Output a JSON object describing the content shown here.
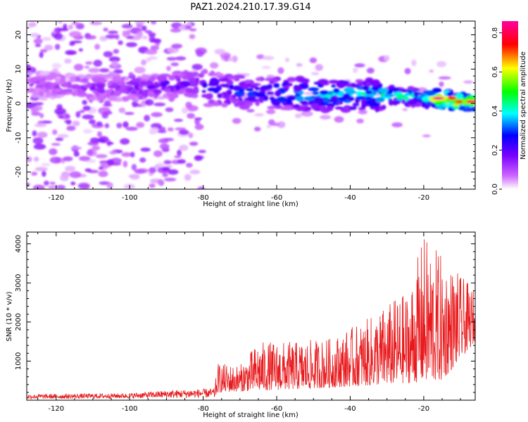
{
  "title": "PAZ1.2024.210.17.39.G14",
  "chart_data": [
    {
      "type": "heatmap",
      "xlabel": "Height of straight line (km)",
      "ylabel": "Frequency (Hz)",
      "xlim": [
        -128,
        -6
      ],
      "ylim": [
        -25,
        24
      ],
      "xticks": [
        -120,
        -100,
        -80,
        -60,
        -40,
        -20
      ],
      "yticks": [
        -20,
        -10,
        0,
        10,
        20
      ],
      "colorbar": {
        "label": "Normalized spectral amplitude",
        "range": [
          0.0,
          0.86
        ],
        "ticks": [
          0.0,
          0.2,
          0.4,
          0.6,
          0.8
        ],
        "colormap": [
          "#ffffff",
          "#cc66ff",
          "#7a00ff",
          "#0000ff",
          "#00ffff",
          "#00ff00",
          "#ffff00",
          "#ff0000",
          "#ff00a0"
        ]
      },
      "ridge": [
        {
          "x": -125,
          "y": 5.5,
          "v": 0.12
        },
        {
          "x": -110,
          "y": 4.5,
          "v": 0.15
        },
        {
          "x": -95,
          "y": 4.5,
          "v": 0.2
        },
        {
          "x": -85,
          "y": 6.0,
          "v": 0.22
        },
        {
          "x": -75,
          "y": 4.0,
          "v": 0.28
        },
        {
          "x": -65,
          "y": 3.0,
          "v": 0.33
        },
        {
          "x": -57,
          "y": 3.0,
          "v": 0.38
        },
        {
          "x": -50,
          "y": 2.5,
          "v": 0.4
        },
        {
          "x": -40,
          "y": 2.5,
          "v": 0.42
        },
        {
          "x": -30,
          "y": 2.5,
          "v": 0.45
        },
        {
          "x": -20,
          "y": 1.5,
          "v": 0.5
        },
        {
          "x": -16,
          "y": 1.5,
          "v": 0.85
        },
        {
          "x": -10,
          "y": 0.5,
          "v": 0.75
        },
        {
          "x": -7,
          "y": 0.5,
          "v": 0.8
        }
      ]
    },
    {
      "type": "line",
      "xlabel": "Height of straight line (km)",
      "ylabel": "SNR (10 * v/v)",
      "xlim": [
        -128,
        -6
      ],
      "ylim": [
        0,
        4300
      ],
      "xticks": [
        -120,
        -100,
        -80,
        -60,
        -40,
        -20
      ],
      "yticks": [
        1000,
        2000,
        3000,
        4000
      ],
      "series": [
        {
          "color": "#e8191c",
          "envelope": [
            {
              "x": -128,
              "y": 150
            },
            {
              "x": -100,
              "y": 180
            },
            {
              "x": -90,
              "y": 250
            },
            {
              "x": -77,
              "y": 300
            },
            {
              "x": -76,
              "y": 950
            },
            {
              "x": -70,
              "y": 900
            },
            {
              "x": -65,
              "y": 1500
            },
            {
              "x": -55,
              "y": 1500
            },
            {
              "x": -45,
              "y": 1600
            },
            {
              "x": -35,
              "y": 2100
            },
            {
              "x": -28,
              "y": 2600
            },
            {
              "x": -24,
              "y": 2800
            },
            {
              "x": -20,
              "y": 4250
            },
            {
              "x": -15,
              "y": 3700
            },
            {
              "x": -10,
              "y": 3200
            },
            {
              "x": -6,
              "y": 2800
            }
          ],
          "floor": [
            {
              "x": -128,
              "y": 30
            },
            {
              "x": -77,
              "y": 60
            },
            {
              "x": -76,
              "y": 200
            },
            {
              "x": -50,
              "y": 300
            },
            {
              "x": -30,
              "y": 400
            },
            {
              "x": -15,
              "y": 500
            },
            {
              "x": -6,
              "y": 1500
            }
          ]
        }
      ]
    }
  ]
}
